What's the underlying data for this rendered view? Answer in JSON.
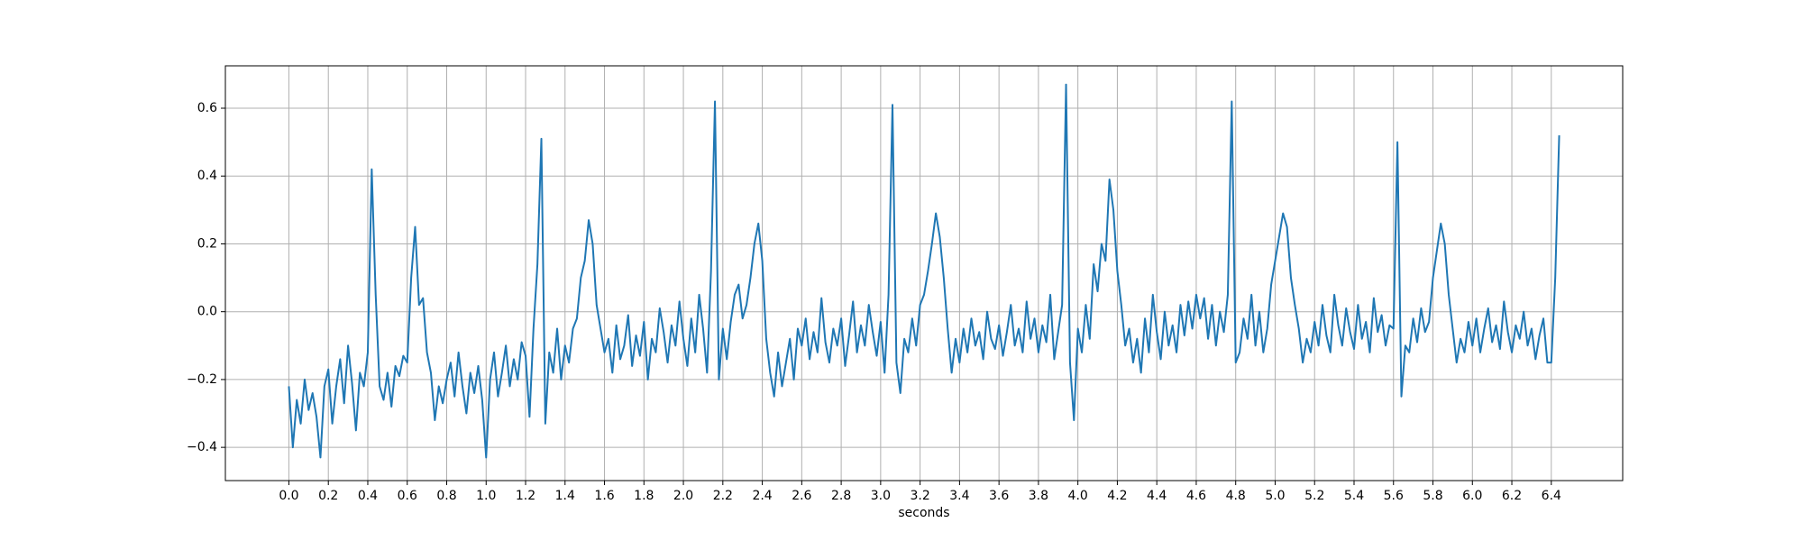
{
  "chart_data": {
    "type": "line",
    "xlabel": "seconds",
    "color": "#1f77b4",
    "grid": true,
    "xlim": [
      -0.322,
      6.762
    ],
    "ylim": [
      -0.498,
      0.725
    ],
    "xticks": [
      {
        "value": 0,
        "label": "0.0"
      },
      0.2,
      0.4,
      0.6,
      0.8,
      {
        "value": 1,
        "label": "1.0"
      },
      1.2,
      1.4,
      1.6,
      1.8,
      {
        "value": 2,
        "label": "2.0"
      },
      2.2,
      2.4,
      2.6,
      2.8,
      {
        "value": 3,
        "label": "3.0"
      },
      3.2,
      3.4,
      3.6,
      3.8,
      {
        "value": 4,
        "label": "4.0"
      },
      4.2,
      4.4,
      4.6,
      4.8,
      {
        "value": 5,
        "label": "5.0"
      },
      5.2,
      5.4,
      5.6,
      5.8,
      {
        "value": 6,
        "label": "6.0"
      },
      6.2,
      6.4
    ],
    "yticks": [
      {
        "value": -0.4,
        "label": "−0.4"
      },
      {
        "value": -0.2,
        "label": "−0.2"
      },
      {
        "value": 0,
        "label": "0.0"
      },
      0.2,
      0.4,
      0.6
    ],
    "x": [
      0,
      0.02,
      0.04,
      0.06,
      0.08,
      0.1,
      0.12,
      0.14,
      0.16,
      0.18,
      0.2,
      0.22,
      0.24,
      0.26,
      0.28,
      0.3,
      0.32,
      0.34,
      0.36,
      0.38,
      0.4,
      0.42,
      0.44,
      0.46,
      0.48,
      0.5,
      0.52,
      0.54,
      0.56,
      0.58,
      0.6,
      0.62,
      0.64,
      0.66,
      0.68,
      0.7,
      0.72,
      0.74,
      0.76,
      0.78,
      0.8,
      0.82,
      0.84,
      0.86,
      0.88,
      0.9,
      0.92,
      0.94,
      0.96,
      0.98,
      1,
      1.02,
      1.04,
      1.06,
      1.08,
      1.1,
      1.12,
      1.14,
      1.16,
      1.18,
      1.2,
      1.22,
      1.24,
      1.26,
      1.28,
      1.3,
      1.32,
      1.34,
      1.36,
      1.38,
      1.4,
      1.42,
      1.44,
      1.46,
      1.48,
      1.5,
      1.52,
      1.54,
      1.56,
      1.58,
      1.6,
      1.62,
      1.64,
      1.66,
      1.68,
      1.7,
      1.72,
      1.74,
      1.76,
      1.78,
      1.8,
      1.82,
      1.84,
      1.86,
      1.88,
      1.9,
      1.92,
      1.94,
      1.96,
      1.98,
      2,
      2.02,
      2.04,
      2.06,
      2.08,
      2.1,
      2.12,
      2.14,
      2.16,
      2.18,
      2.2,
      2.22,
      2.24,
      2.26,
      2.28,
      2.3,
      2.32,
      2.34,
      2.36,
      2.38,
      2.4,
      2.42,
      2.44,
      2.46,
      2.48,
      2.5,
      2.52,
      2.54,
      2.56,
      2.58,
      2.6,
      2.62,
      2.64,
      2.66,
      2.68,
      2.7,
      2.72,
      2.74,
      2.76,
      2.78,
      2.8,
      2.82,
      2.84,
      2.86,
      2.88,
      2.9,
      2.92,
      2.94,
      2.96,
      2.98,
      3,
      3.02,
      3.04,
      3.06,
      3.08,
      3.1,
      3.12,
      3.14,
      3.16,
      3.18,
      3.2,
      3.22,
      3.24,
      3.26,
      3.28,
      3.3,
      3.32,
      3.34,
      3.36,
      3.38,
      3.4,
      3.42,
      3.44,
      3.46,
      3.48,
      3.5,
      3.52,
      3.54,
      3.56,
      3.58,
      3.6,
      3.62,
      3.64,
      3.66,
      3.68,
      3.7,
      3.72,
      3.74,
      3.76,
      3.78,
      3.8,
      3.82,
      3.84,
      3.86,
      3.88,
      3.9,
      3.92,
      3.94,
      3.96,
      3.98,
      4,
      4.02,
      4.04,
      4.06,
      4.08,
      4.1,
      4.12,
      4.14,
      4.16,
      4.18,
      4.2,
      4.22,
      4.24,
      4.26,
      4.28,
      4.3,
      4.32,
      4.34,
      4.36,
      4.38,
      4.4,
      4.42,
      4.44,
      4.46,
      4.48,
      4.5,
      4.52,
      4.54,
      4.56,
      4.58,
      4.6,
      4.62,
      4.64,
      4.66,
      4.68,
      4.7,
      4.72,
      4.74,
      4.76,
      4.78,
      4.8,
      4.82,
      4.84,
      4.86,
      4.88,
      4.9,
      4.92,
      4.94,
      4.96,
      4.98,
      5,
      5.02,
      5.04,
      5.06,
      5.08,
      5.1,
      5.12,
      5.14,
      5.16,
      5.18,
      5.2,
      5.22,
      5.24,
      5.26,
      5.28,
      5.3,
      5.32,
      5.34,
      5.36,
      5.38,
      5.4,
      5.42,
      5.44,
      5.46,
      5.48,
      5.5,
      5.52,
      5.54,
      5.56,
      5.58,
      5.6,
      5.62,
      5.64,
      5.66,
      5.68,
      5.7,
      5.72,
      5.74,
      5.76,
      5.78,
      5.8,
      5.82,
      5.84,
      5.86,
      5.88,
      5.9,
      5.92,
      5.94,
      5.96,
      5.98,
      6,
      6.02,
      6.04,
      6.06,
      6.08,
      6.1,
      6.12,
      6.14,
      6.16,
      6.18,
      6.2,
      6.22,
      6.24,
      6.26,
      6.28,
      6.3,
      6.32,
      6.34,
      6.36,
      6.38,
      6.4,
      6.42,
      6.44
    ],
    "values": [
      -0.22,
      -0.4,
      -0.26,
      -0.33,
      -0.2,
      -0.29,
      -0.24,
      -0.31,
      -0.43,
      -0.22,
      -0.17,
      -0.33,
      -0.22,
      -0.14,
      -0.27,
      -0.1,
      -0.21,
      -0.35,
      -0.18,
      -0.22,
      -0.12,
      0.42,
      0.05,
      -0.22,
      -0.26,
      -0.18,
      -0.28,
      -0.16,
      -0.19,
      -0.13,
      -0.15,
      0.1,
      0.25,
      0.02,
      0.04,
      -0.12,
      -0.18,
      -0.32,
      -0.22,
      -0.27,
      -0.2,
      -0.15,
      -0.25,
      -0.12,
      -0.22,
      -0.3,
      -0.18,
      -0.24,
      -0.16,
      -0.26,
      -0.43,
      -0.2,
      -0.12,
      -0.25,
      -0.18,
      -0.1,
      -0.22,
      -0.14,
      -0.2,
      -0.09,
      -0.13,
      -0.31,
      -0.05,
      0.14,
      0.51,
      -0.33,
      -0.12,
      -0.18,
      -0.05,
      -0.2,
      -0.1,
      -0.15,
      -0.05,
      -0.02,
      0.1,
      0.15,
      0.27,
      0.2,
      0.02,
      -0.05,
      -0.12,
      -0.08,
      -0.18,
      -0.04,
      -0.14,
      -0.1,
      -0.01,
      -0.16,
      -0.07,
      -0.13,
      -0.03,
      -0.2,
      -0.08,
      -0.12,
      0.01,
      -0.06,
      -0.15,
      -0.04,
      -0.1,
      0.03,
      -0.08,
      -0.16,
      -0.02,
      -0.12,
      0.05,
      -0.05,
      -0.18,
      0.12,
      0.62,
      -0.2,
      -0.05,
      -0.14,
      -0.03,
      0.05,
      0.08,
      -0.02,
      0.02,
      0.1,
      0.2,
      0.26,
      0.15,
      -0.08,
      -0.18,
      -0.25,
      -0.12,
      -0.22,
      -0.15,
      -0.08,
      -0.2,
      -0.05,
      -0.1,
      -0.02,
      -0.14,
      -0.06,
      -0.12,
      0.04,
      -0.09,
      -0.15,
      -0.05,
      -0.1,
      -0.02,
      -0.16,
      -0.07,
      0.03,
      -0.12,
      -0.04,
      -0.1,
      0.02,
      -0.06,
      -0.13,
      -0.03,
      -0.18,
      0.05,
      0.61,
      -0.15,
      -0.24,
      -0.08,
      -0.12,
      -0.02,
      -0.1,
      0.02,
      0.05,
      0.12,
      0.2,
      0.29,
      0.22,
      0.1,
      -0.05,
      -0.18,
      -0.08,
      -0.15,
      -0.05,
      -0.12,
      -0.02,
      -0.1,
      -0.06,
      -0.14,
      0.0,
      -0.08,
      -0.11,
      -0.04,
      -0.13,
      -0.06,
      0.02,
      -0.1,
      -0.05,
      -0.12,
      0.03,
      -0.08,
      -0.02,
      -0.12,
      -0.04,
      -0.09,
      0.05,
      -0.14,
      -0.06,
      0.02,
      0.67,
      -0.15,
      -0.32,
      -0.05,
      -0.12,
      0.02,
      -0.08,
      0.14,
      0.06,
      0.2,
      0.15,
      0.39,
      0.3,
      0.12,
      0.02,
      -0.1,
      -0.05,
      -0.15,
      -0.08,
      -0.18,
      -0.02,
      -0.12,
      0.05,
      -0.06,
      -0.14,
      0.0,
      -0.1,
      -0.04,
      -0.12,
      0.02,
      -0.07,
      0.03,
      -0.05,
      0.05,
      -0.02,
      0.04,
      -0.08,
      0.02,
      -0.1,
      0.0,
      -0.06,
      0.05,
      0.62,
      -0.15,
      -0.12,
      -0.02,
      -0.08,
      0.05,
      -0.1,
      0.0,
      -0.12,
      -0.05,
      0.08,
      0.15,
      0.22,
      0.29,
      0.25,
      0.1,
      0.02,
      -0.05,
      -0.15,
      -0.08,
      -0.12,
      -0.03,
      -0.1,
      0.02,
      -0.07,
      -0.12,
      0.05,
      -0.04,
      -0.1,
      0.01,
      -0.06,
      -0.11,
      0.02,
      -0.08,
      -0.03,
      -0.12,
      0.04,
      -0.06,
      -0.01,
      -0.1,
      -0.04,
      -0.05,
      0.5,
      -0.25,
      -0.1,
      -0.12,
      -0.02,
      -0.09,
      0.01,
      -0.06,
      -0.03,
      0.1,
      0.18,
      0.26,
      0.2,
      0.05,
      -0.05,
      -0.15,
      -0.08,
      -0.12,
      -0.03,
      -0.1,
      -0.02,
      -0.12,
      -0.05,
      0.01,
      -0.09,
      -0.04,
      -0.11,
      0.03,
      -0.06,
      -0.12,
      -0.04,
      -0.08,
      0.0,
      -0.1,
      -0.05,
      -0.14,
      -0.07,
      -0.02,
      -0.15,
      -0.15,
      0.1,
      0.52
    ]
  }
}
